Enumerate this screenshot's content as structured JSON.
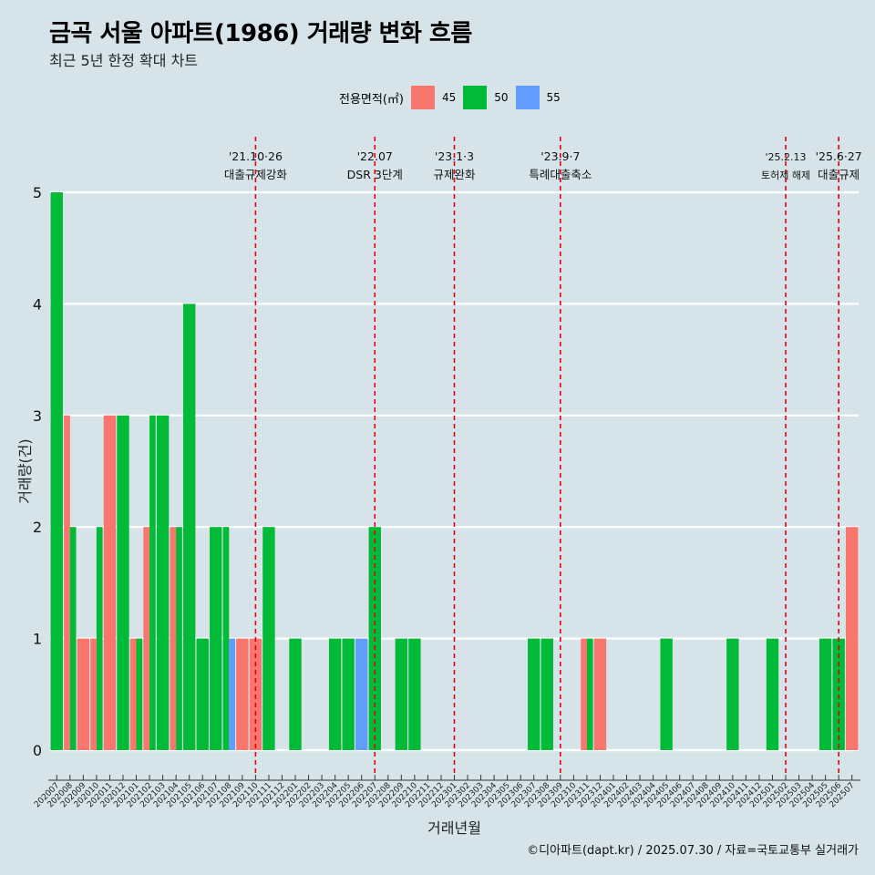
{
  "header": {
    "title": "금곡 서울 아파트(1986) 거래량 변화 흐름",
    "subtitle": "최근 5년 한정 확대 차트"
  },
  "legend": {
    "title": "전용면적(㎡)",
    "items": [
      {
        "label": "45",
        "color": "#f8766d"
      },
      {
        "label": "50",
        "color": "#00ba38"
      },
      {
        "label": "55",
        "color": "#619cff"
      }
    ]
  },
  "caption": "©디아파트(dapt.kr) / 2025.07.30 / 자료=국토교통부 실거래가",
  "chart_data": {
    "type": "bar",
    "stacked": false,
    "grouped": true,
    "xlabel": "거래년월",
    "ylabel": "거래량(건)",
    "ylim": [
      0,
      5
    ],
    "yticks": [
      0,
      1,
      2,
      3,
      4,
      5
    ],
    "categories": [
      "202007",
      "202008",
      "202009",
      "202010",
      "202011",
      "202012",
      "202101",
      "202102",
      "202103",
      "202104",
      "202105",
      "202106",
      "202107",
      "202108",
      "202109",
      "202110",
      "202111",
      "202112",
      "202201",
      "202202",
      "202203",
      "202204",
      "202205",
      "202206",
      "202207",
      "202208",
      "202209",
      "202210",
      "202211",
      "202212",
      "202301",
      "202302",
      "202303",
      "202304",
      "202305",
      "202306",
      "202307",
      "202308",
      "202309",
      "202310",
      "202311",
      "202312",
      "202401",
      "202402",
      "202403",
      "202404",
      "202405",
      "202406",
      "202407",
      "202408",
      "202409",
      "202410",
      "202411",
      "202412",
      "202501",
      "202502",
      "202503",
      "202504",
      "202505",
      "202506",
      "202507"
    ],
    "series": [
      {
        "name": "45",
        "color": "#f8766d",
        "points": [
          {
            "x": "202008",
            "y": 3
          },
          {
            "x": "202009",
            "y": 1
          },
          {
            "x": "202010",
            "y": 1
          },
          {
            "x": "202011",
            "y": 3
          },
          {
            "x": "202101",
            "y": 1
          },
          {
            "x": "202102",
            "y": 2
          },
          {
            "x": "202104",
            "y": 2
          },
          {
            "x": "202109",
            "y": 1
          },
          {
            "x": "202110",
            "y": 1
          },
          {
            "x": "202311",
            "y": 1
          },
          {
            "x": "202312",
            "y": 1
          },
          {
            "x": "202507",
            "y": 2
          }
        ]
      },
      {
        "name": "50",
        "color": "#00ba38",
        "points": [
          {
            "x": "202007",
            "y": 5
          },
          {
            "x": "202008",
            "y": 2
          },
          {
            "x": "202010",
            "y": 2
          },
          {
            "x": "202012",
            "y": 3
          },
          {
            "x": "202101",
            "y": 1
          },
          {
            "x": "202102",
            "y": 3
          },
          {
            "x": "202103",
            "y": 3
          },
          {
            "x": "202104",
            "y": 2
          },
          {
            "x": "202105",
            "y": 4
          },
          {
            "x": "202106",
            "y": 1
          },
          {
            "x": "202107",
            "y": 2
          },
          {
            "x": "202108",
            "y": 2
          },
          {
            "x": "202111",
            "y": 2
          },
          {
            "x": "202201",
            "y": 1
          },
          {
            "x": "202204",
            "y": 1
          },
          {
            "x": "202205",
            "y": 1
          },
          {
            "x": "202207",
            "y": 2
          },
          {
            "x": "202209",
            "y": 1
          },
          {
            "x": "202210",
            "y": 1
          },
          {
            "x": "202307",
            "y": 1
          },
          {
            "x": "202308",
            "y": 1
          },
          {
            "x": "202311",
            "y": 1
          },
          {
            "x": "202405",
            "y": 1
          },
          {
            "x": "202410",
            "y": 1
          },
          {
            "x": "202501",
            "y": 1
          },
          {
            "x": "202505",
            "y": 1
          },
          {
            "x": "202506",
            "y": 1
          }
        ]
      },
      {
        "name": "55",
        "color": "#619cff",
        "points": [
          {
            "x": "202108",
            "y": 1
          },
          {
            "x": "202206",
            "y": 1
          }
        ]
      }
    ],
    "annotations": [
      {
        "x": "202110",
        "date": "'21.10·26",
        "label": "대출규제강화"
      },
      {
        "x": "202207",
        "date": "'22.07",
        "label": "DSR 3단계"
      },
      {
        "x": "202301",
        "date": "'23.1·3",
        "label": "규제완화"
      },
      {
        "x": "202309",
        "date": "'23.9·7",
        "label": "특례대출축소"
      },
      {
        "x": "202502",
        "date": "'25.2.13",
        "label": "토허제 해제",
        "small": true
      },
      {
        "x": "202506",
        "date": "'25.6·27",
        "label": "대출규제"
      }
    ],
    "grid": "horizontal",
    "legend_position": "top",
    "annotation_color": "#e8000b",
    "grid_color": "#ffffff"
  }
}
